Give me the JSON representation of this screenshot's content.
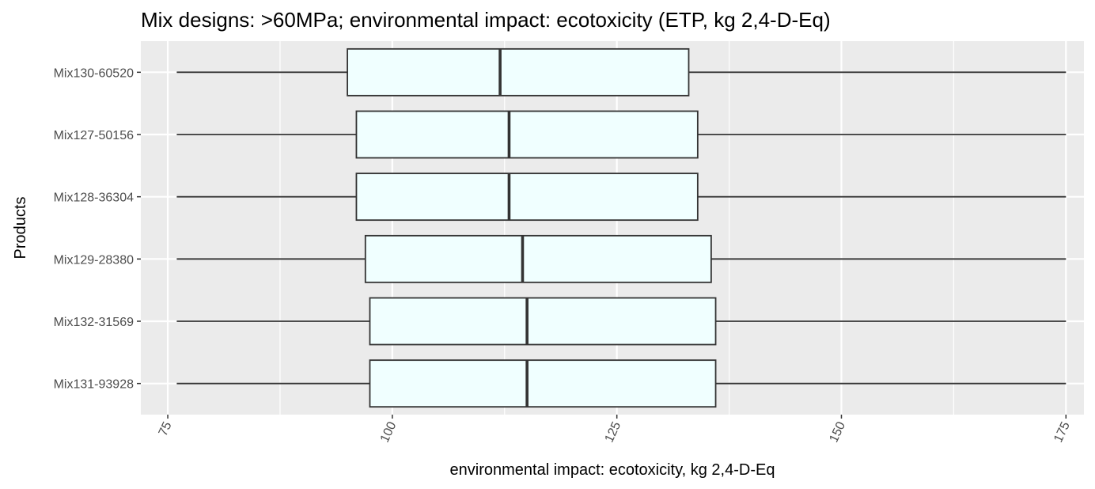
{
  "chart_data": {
    "type": "boxplot",
    "orientation": "horizontal",
    "title": "Mix designs: >60MPa; environmental impact: ecotoxicity (ETP, kg 2,4-D-Eq)",
    "xlabel": "environmental impact: ecotoxicity, kg 2,4-D-Eq",
    "ylabel": "Products",
    "xlim": [
      72,
      177
    ],
    "x_ticks": [
      "75",
      "100",
      "125",
      "150",
      "175"
    ],
    "x_tick_values": [
      75,
      100,
      125,
      150,
      175
    ],
    "grid": true,
    "box_fill": "#f0ffff",
    "line_color": "#333333",
    "panel_background": "#ebebeb",
    "categories": [
      "Mix130-60520",
      "Mix127-50156",
      "Mix128-36304",
      "Mix129-28380",
      "Mix132-31569",
      "Mix131-93928"
    ],
    "boxes": [
      {
        "label": "Mix130-60520",
        "min": 76,
        "q1": 95,
        "median": 112,
        "q3": 133,
        "max": 175
      },
      {
        "label": "Mix127-50156",
        "min": 76,
        "q1": 96,
        "median": 113,
        "q3": 134,
        "max": 175
      },
      {
        "label": "Mix128-36304",
        "min": 76,
        "q1": 96,
        "median": 113,
        "q3": 134,
        "max": 175
      },
      {
        "label": "Mix129-28380",
        "min": 76,
        "q1": 97,
        "median": 114.5,
        "q3": 135.5,
        "max": 175
      },
      {
        "label": "Mix132-31569",
        "min": 76,
        "q1": 97.5,
        "median": 115,
        "q3": 136,
        "max": 175
      },
      {
        "label": "Mix131-93928",
        "min": 76,
        "q1": 97.5,
        "median": 115,
        "q3": 136,
        "max": 175
      }
    ]
  }
}
